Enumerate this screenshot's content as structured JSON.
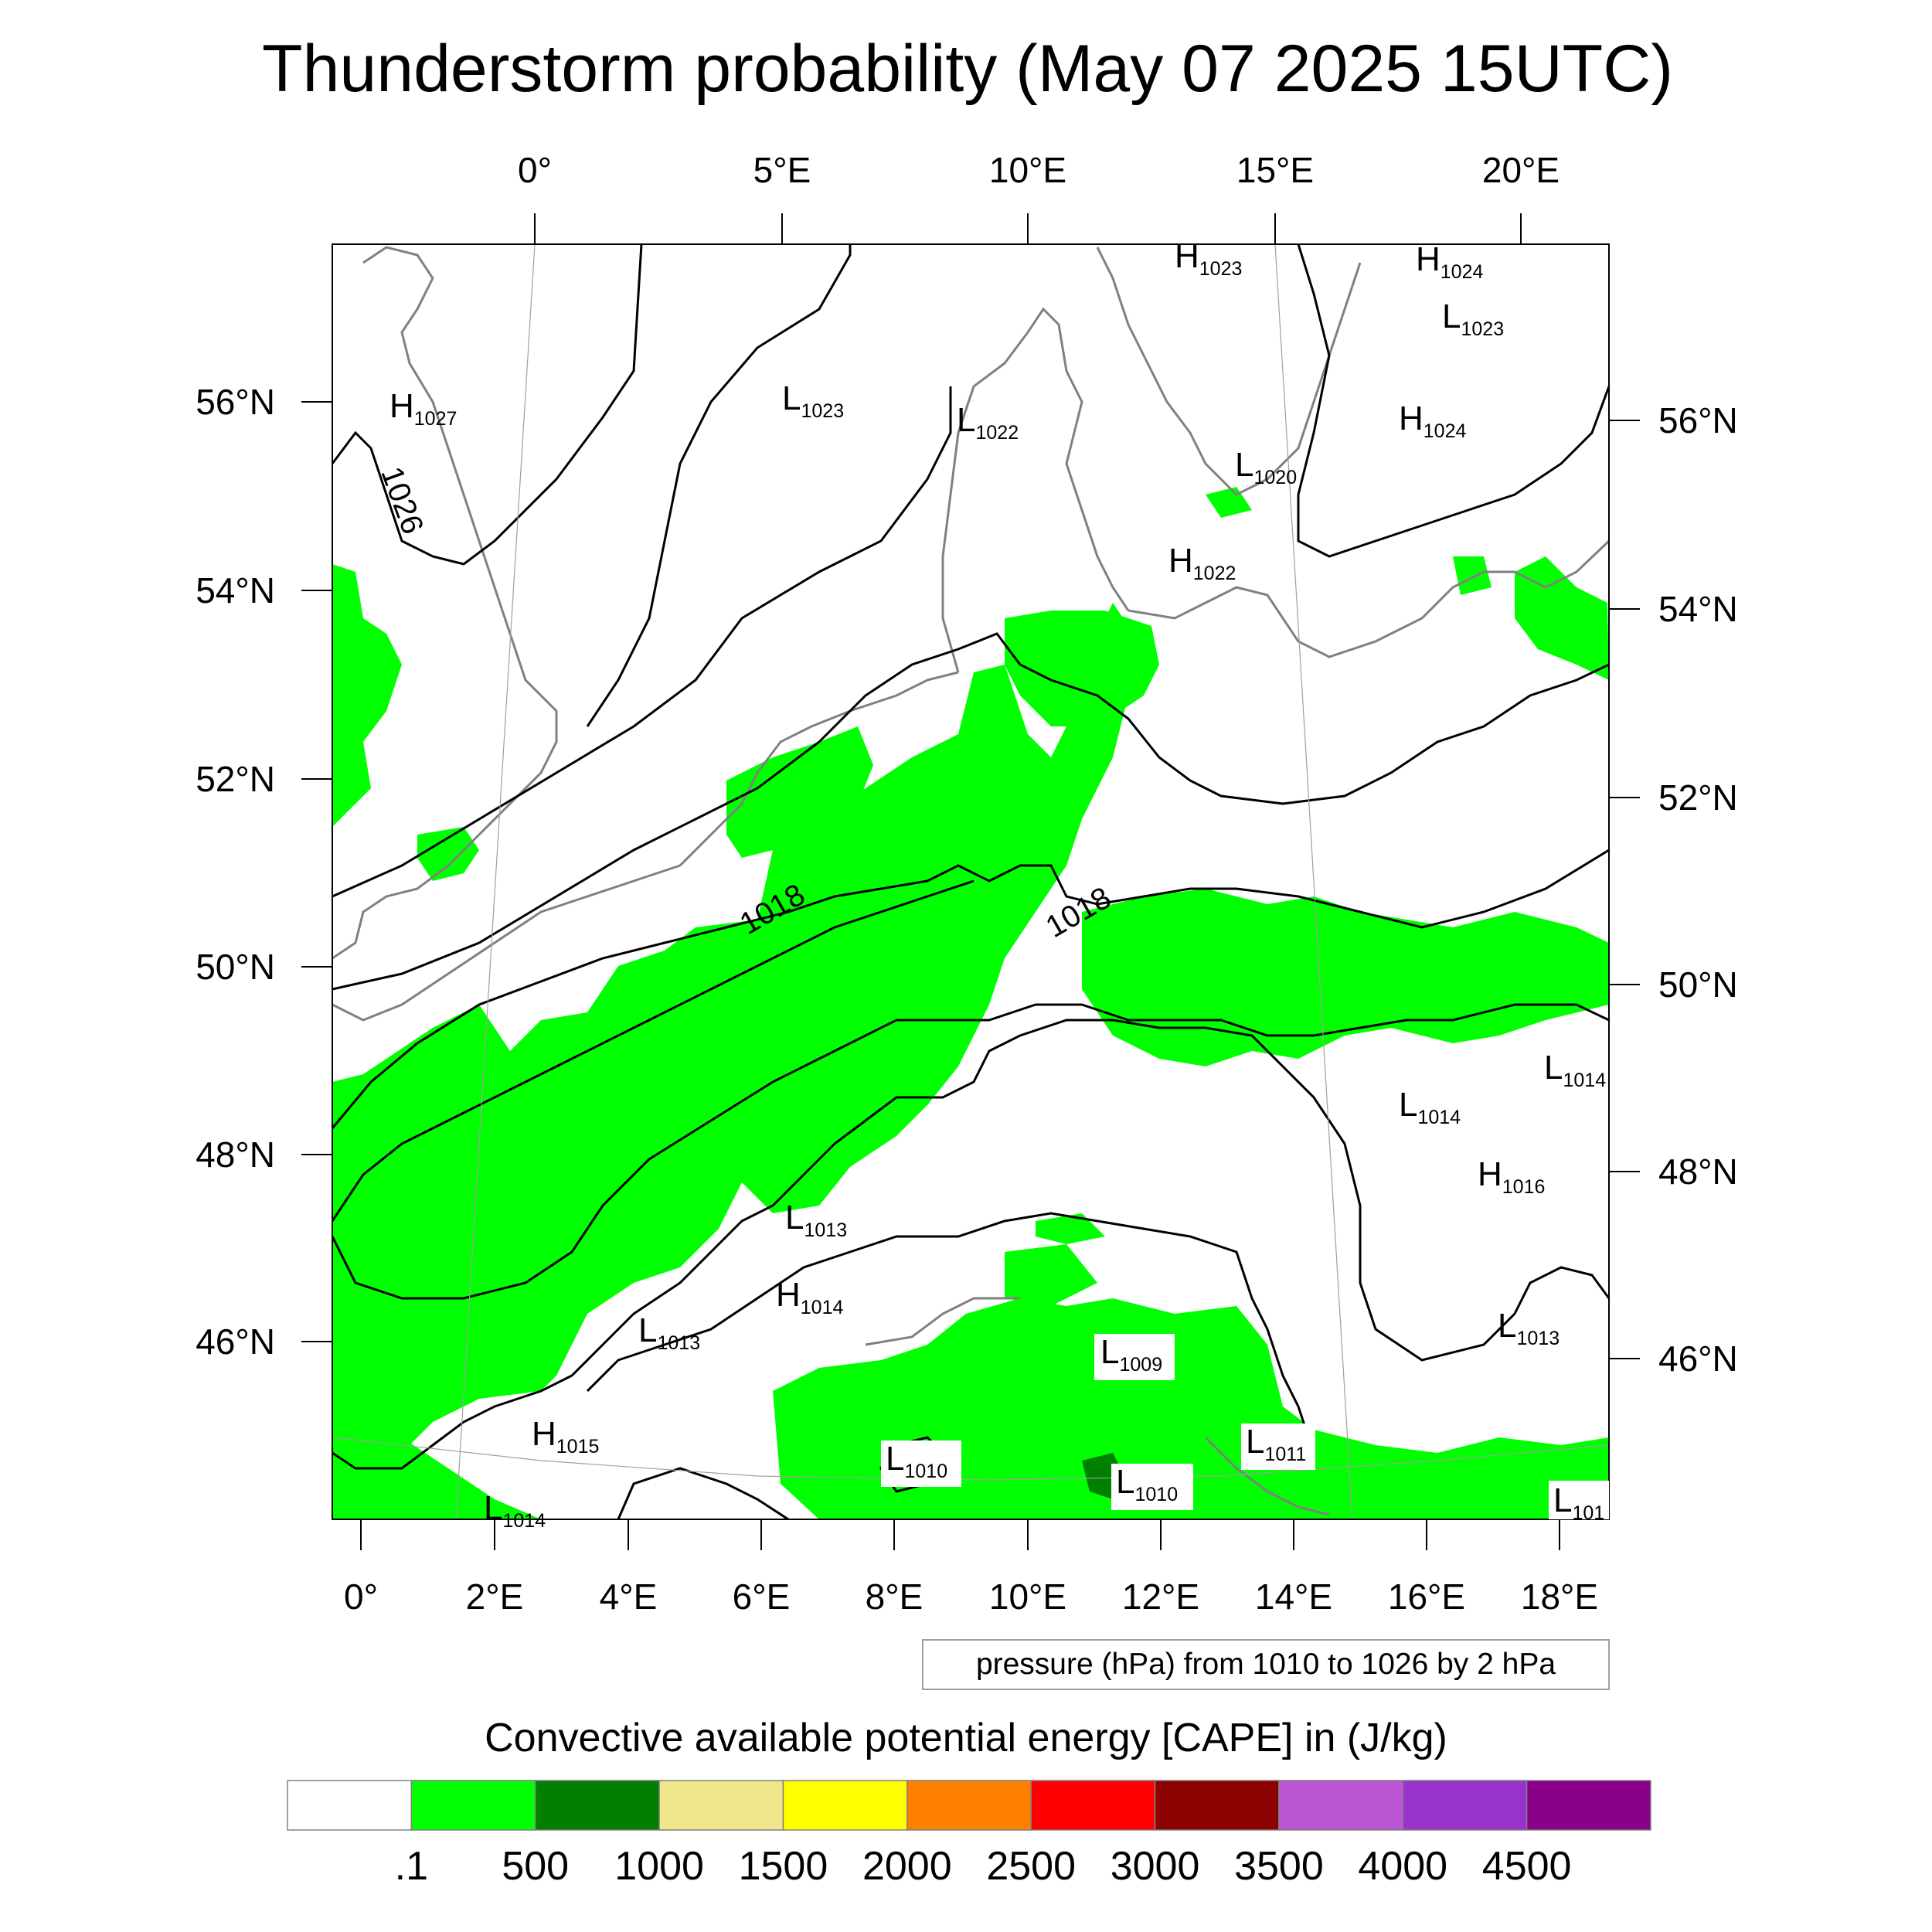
{
  "title": "Thunderstorm probability (May 07 2025 15UTC)",
  "top_longitudes": [
    "0°",
    "5°E",
    "10°E",
    "15°E",
    "20°E"
  ],
  "bottom_longitudes": [
    "0°",
    "2°E",
    "4°E",
    "6°E",
    "8°E",
    "10°E",
    "12°E",
    "14°E",
    "16°E",
    "18°E"
  ],
  "left_latitudes": [
    "56°N",
    "54°N",
    "52°N",
    "50°N",
    "48°N",
    "46°N"
  ],
  "right_latitudes": [
    "56°N",
    "54°N",
    "52°N",
    "50°N",
    "48°N",
    "46°N"
  ],
  "pressure_centers": [
    {
      "letter": "H",
      "value": "1027"
    },
    {
      "letter": "L",
      "value": "1023"
    },
    {
      "letter": "L",
      "value": "1022"
    },
    {
      "letter": "H",
      "value": "1023"
    },
    {
      "letter": "H",
      "value": "1024"
    },
    {
      "letter": "L",
      "value": "1023"
    },
    {
      "letter": "H",
      "value": "1024"
    },
    {
      "letter": "L",
      "value": "1020"
    },
    {
      "letter": "H",
      "value": "1022"
    },
    {
      "letter": "L",
      "value": "1014"
    },
    {
      "letter": "L",
      "value": "1014"
    },
    {
      "letter": "H",
      "value": "1016"
    },
    {
      "letter": "L",
      "value": "1013"
    },
    {
      "letter": "H",
      "value": "1014"
    },
    {
      "letter": "L",
      "value": "1013"
    },
    {
      "letter": "L",
      "value": "1009"
    },
    {
      "letter": "L",
      "value": "1013"
    },
    {
      "letter": "H",
      "value": "1015"
    },
    {
      "letter": "L",
      "value": "1010"
    },
    {
      "letter": "L",
      "value": "1010"
    },
    {
      "letter": "L",
      "value": "1011"
    },
    {
      "letter": "L",
      "value": "1014"
    },
    {
      "letter": "L",
      "value": "101"
    }
  ],
  "isobar_labels": [
    "1026",
    "1018",
    "1018"
  ],
  "contour_note": "pressure (hPa) from 1010 to 1026 by 2 hPa",
  "colorbar": {
    "title": "Convective available potential energy [CAPE] in (J/kg)",
    "labels": [
      ".1",
      "500",
      "1000",
      "1500",
      "2000",
      "2500",
      "3000",
      "3500",
      "4000",
      "4500"
    ],
    "colors": [
      "#ffffff",
      "#00ff00",
      "#007f00",
      "#f0e68c",
      "#ffff00",
      "#ff8000",
      "#ff0000",
      "#8b0000",
      "#ba55d3",
      "#9932cc",
      "#8b008b"
    ]
  },
  "styles": {
    "cape_fill": "#00ff00",
    "cape_strong_fill": "#007f00",
    "coastline": "#808080",
    "isobar": "#000000"
  }
}
